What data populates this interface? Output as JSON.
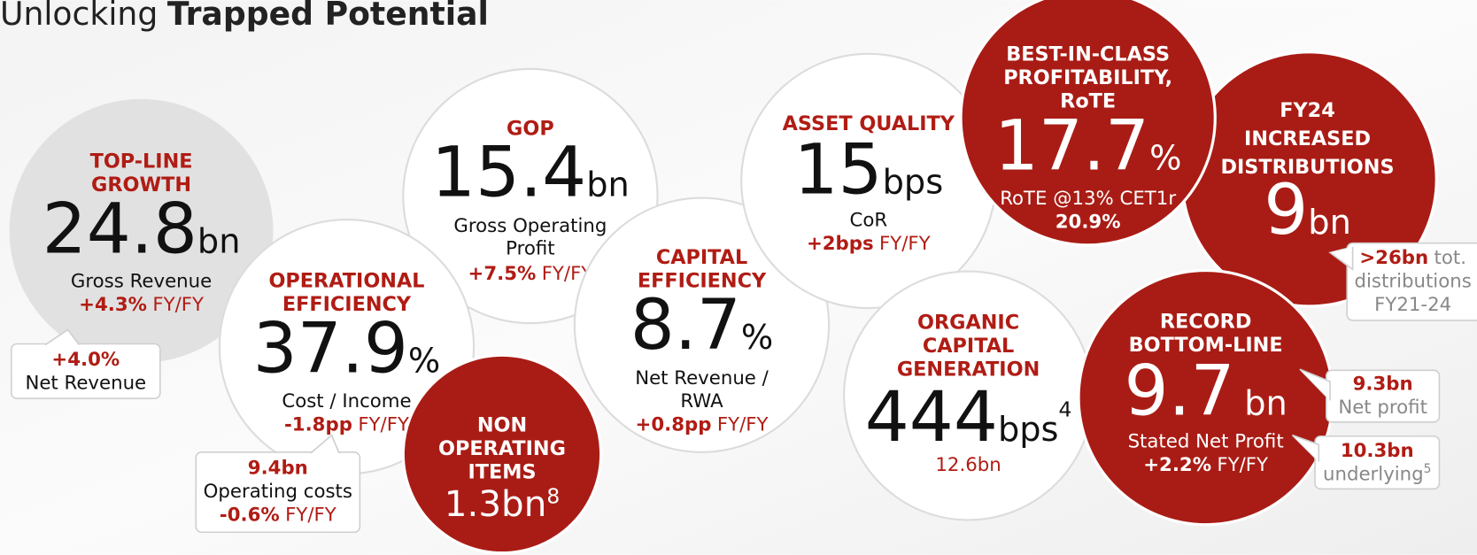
{
  "title": {
    "light": "Unlocking",
    "bold": "Trapped Potential"
  },
  "bubbles": [
    {
      "heading": [
        "TOP-LINE",
        "GROWTH"
      ],
      "value": "24.8",
      "unit": "bn",
      "description": [
        "Gross Revenue"
      ],
      "change": "+4.3%",
      "change_period": "FY/FY",
      "callout": {
        "value": "+4.0%",
        "label": "Net Revenue"
      }
    },
    {
      "heading": [
        "OPERATIONAL",
        "EFFICIENCY"
      ],
      "value": "37.9",
      "unit": "%",
      "description": [
        "Cost / Income"
      ],
      "change": "-1.8pp",
      "change_period": "FY/FY",
      "callout": {
        "value": "9.4bn",
        "label": "Operating costs",
        "change": "-0.6%",
        "change_period": "FY/FY"
      }
    },
    {
      "heading": [
        "GOP"
      ],
      "value": "15.4",
      "unit": "bn",
      "description": [
        "Gross Operating",
        "Profit"
      ],
      "change": "+7.5%",
      "change_period": "FY/FY"
    },
    {
      "heading": [
        "NON",
        "OPERATING",
        "ITEMS"
      ],
      "value": "1.3",
      "unit": "bn",
      "superscript": "8"
    },
    {
      "heading": [
        "CAPITAL",
        "EFFICIENCY"
      ],
      "value": "8.7",
      "unit": "%",
      "description": [
        "Net Revenue  /",
        "RWA"
      ],
      "change": "+0.8pp",
      "change_period": "FY/FY"
    },
    {
      "heading": [
        "ASSET QUALITY"
      ],
      "value": "15",
      "unit": "bps",
      "description": [
        "CoR"
      ],
      "change": "+2bps",
      "change_period": "FY/FY"
    },
    {
      "heading": [
        "ORGANIC",
        "CAPITAL",
        "GENERATION"
      ],
      "value": "444",
      "unit": "bps",
      "superscript": "4",
      "description": [
        "12.6bn"
      ]
    },
    {
      "heading": [
        "BEST-IN-CLASS",
        "PROFITABILITY,",
        "RoTE"
      ],
      "value": "17.7",
      "unit": "%",
      "description": [
        "RoTE @13% CET1r"
      ],
      "change": "20.9%"
    },
    {
      "heading": [
        "FY24",
        "INCREASED",
        "DISTRIBUTIONS"
      ],
      "value": "9",
      "unit": "bn",
      "callout": {
        "value": ">26bn",
        "suffix": "tot.",
        "label": "distributions",
        "period": "FY21-24"
      }
    },
    {
      "heading": [
        "RECORD",
        "BOTTOM-LINE"
      ],
      "value": "9.7",
      "unit": "bn",
      "description": [
        "Stated Net Profit"
      ],
      "change": "+2.2%",
      "change_period": "FY/FY",
      "callouts": [
        {
          "value": "9.3bn",
          "label": "Net profit"
        },
        {
          "value": "10.3bn",
          "label": "underlying",
          "superscript": "5"
        }
      ]
    }
  ]
}
